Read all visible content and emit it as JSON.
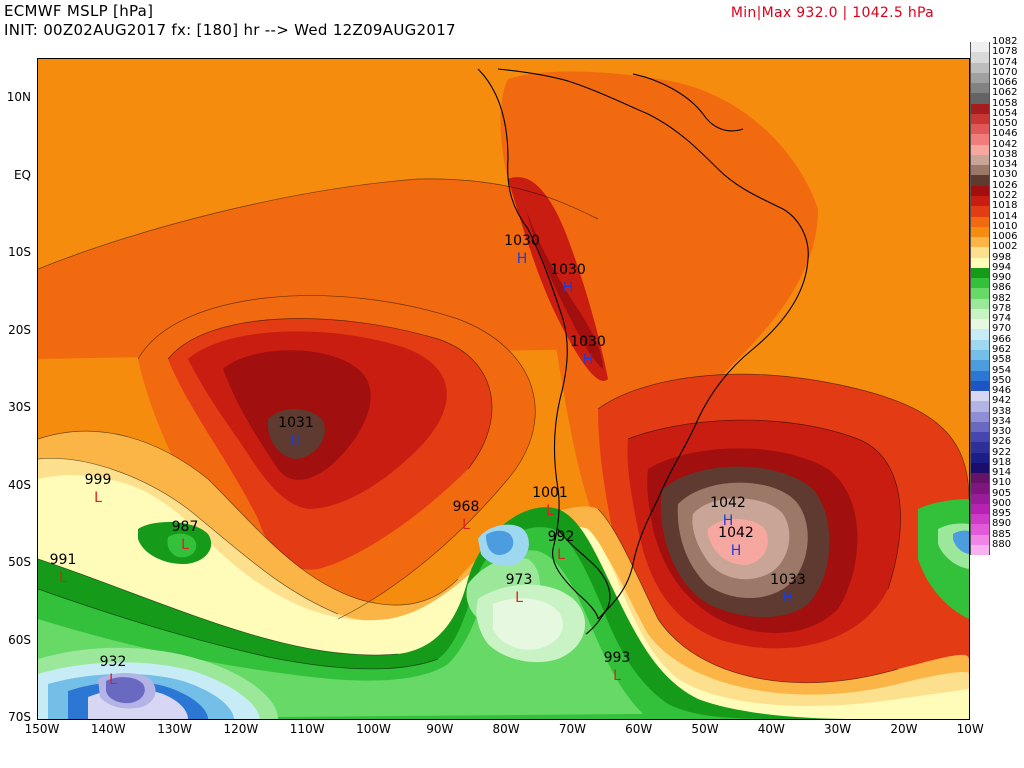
{
  "header": {
    "line1": "ECMWF MSLP [hPa]",
    "line2": "INIT: 00Z02AUG2017 fx: [180] hr --> Wed 12Z09AUG2017",
    "minmax": "Min|Max 932.0 | 1042.5 hPa"
  },
  "axes": {
    "lat_ticks": [
      "10N",
      "EQ",
      "10S",
      "20S",
      "30S",
      "40S",
      "50S",
      "60S",
      "70S"
    ],
    "lon_ticks": [
      "150W",
      "140W",
      "130W",
      "120W",
      "110W",
      "100W",
      "90W",
      "80W",
      "70W",
      "60W",
      "50W",
      "40W",
      "30W",
      "20W",
      "10W"
    ]
  },
  "legend": {
    "entries": [
      {
        "label": "1082",
        "color": "#efefef"
      },
      {
        "label": "1078",
        "color": "#d9d9d9"
      },
      {
        "label": "1074",
        "color": "#bdbdbd"
      },
      {
        "label": "1070",
        "color": "#a0a0a0"
      },
      {
        "label": "1066",
        "color": "#828282"
      },
      {
        "label": "1062",
        "color": "#646464"
      },
      {
        "label": "1058",
        "color": "#a41c1c"
      },
      {
        "label": "1054",
        "color": "#c83636"
      },
      {
        "label": "1050",
        "color": "#e05858"
      },
      {
        "label": "1046",
        "color": "#f07c7c"
      },
      {
        "label": "1042",
        "color": "#f6a8a0"
      },
      {
        "label": "1038",
        "color": "#c9a597"
      },
      {
        "label": "1034",
        "color": "#9c7868"
      },
      {
        "label": "1030",
        "color": "#5e3a30"
      },
      {
        "label": "1026",
        "color": "#a10f0f"
      },
      {
        "label": "1022",
        "color": "#c91d12"
      },
      {
        "label": "1018",
        "color": "#e33b14"
      },
      {
        "label": "1014",
        "color": "#f26a10"
      },
      {
        "label": "1010",
        "color": "#f58c0e"
      },
      {
        "label": "1006",
        "color": "#fbb446"
      },
      {
        "label": "1002",
        "color": "#fde08e"
      },
      {
        "label": "998",
        "color": "#fffbb8"
      },
      {
        "label": "994",
        "color": "#159a1a"
      },
      {
        "label": "990",
        "color": "#33c03a"
      },
      {
        "label": "986",
        "color": "#66d966"
      },
      {
        "label": "982",
        "color": "#9be89b"
      },
      {
        "label": "978",
        "color": "#c9f3c5"
      },
      {
        "label": "974",
        "color": "#e6f9e0"
      },
      {
        "label": "970",
        "color": "#c8ecf6"
      },
      {
        "label": "966",
        "color": "#9ed8f0"
      },
      {
        "label": "962",
        "color": "#74bfe8"
      },
      {
        "label": "958",
        "color": "#4b9de0"
      },
      {
        "label": "954",
        "color": "#2c77d4"
      },
      {
        "label": "950",
        "color": "#1d55c2"
      },
      {
        "label": "946",
        "color": "#d7d7f3"
      },
      {
        "label": "942",
        "color": "#b3b3e6"
      },
      {
        "label": "938",
        "color": "#8e8ed6"
      },
      {
        "label": "934",
        "color": "#6969c2"
      },
      {
        "label": "930",
        "color": "#4646ae"
      },
      {
        "label": "926",
        "color": "#2f2f9a"
      },
      {
        "label": "922",
        "color": "#1d1d88"
      },
      {
        "label": "918",
        "color": "#1c0c6e"
      },
      {
        "label": "914",
        "color": "#661268"
      },
      {
        "label": "910",
        "color": "#7f1680"
      },
      {
        "label": "905",
        "color": "#9a1c9a"
      },
      {
        "label": "900",
        "color": "#b722b3"
      },
      {
        "label": "895",
        "color": "#cf3bc9"
      },
      {
        "label": "890",
        "color": "#e35ad8"
      },
      {
        "label": "885",
        "color": "#ef85e6"
      },
      {
        "label": "880",
        "color": "#f7b0f0"
      }
    ]
  },
  "centers": [
    {
      "value": "1031",
      "type": "H"
    },
    {
      "value": "1030",
      "type": "H"
    },
    {
      "value": "1030",
      "type": "H"
    },
    {
      "value": "1030",
      "type": "H"
    },
    {
      "value": "1042",
      "type": "H"
    },
    {
      "value": "1042",
      "type": "H"
    },
    {
      "value": "1033",
      "type": "H"
    },
    {
      "value": "999",
      "type": "L"
    },
    {
      "value": "987",
      "type": "L"
    },
    {
      "value": "991",
      "type": "L"
    },
    {
      "value": "968",
      "type": "L"
    },
    {
      "value": "992",
      "type": "L"
    },
    {
      "value": "973",
      "type": "L"
    },
    {
      "value": "993",
      "type": "L"
    },
    {
      "value": "932",
      "type": "L"
    },
    {
      "value": "1001",
      "type": "L"
    }
  ]
}
